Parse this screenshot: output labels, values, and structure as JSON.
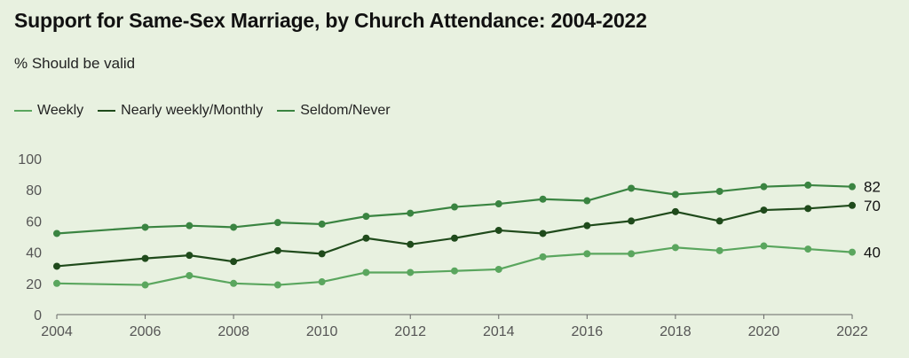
{
  "chart_data": {
    "type": "line",
    "title": "Support for Same-Sex Marriage, by Church Attendance: 2004-2022",
    "subtitle": "% Should be valid",
    "xlabel": "",
    "ylabel": "",
    "x": [
      2004,
      2006,
      2007,
      2008,
      2009,
      2010,
      2011,
      2012,
      2013,
      2014,
      2015,
      2016,
      2017,
      2018,
      2019,
      2020,
      2021,
      2022
    ],
    "x_ticks": [
      2004,
      2006,
      2008,
      2010,
      2012,
      2014,
      2016,
      2018,
      2020,
      2022
    ],
    "y_ticks": [
      0,
      20,
      40,
      60,
      80,
      100
    ],
    "xlim": [
      2004,
      2022
    ],
    "ylim": [
      0,
      100
    ],
    "grid": false,
    "legend_position": "top-left",
    "series": [
      {
        "name": "Weekly",
        "color": "#5aa65e",
        "values": [
          20,
          19,
          25,
          20,
          19,
          21,
          27,
          27,
          28,
          29,
          37,
          39,
          39,
          43,
          41,
          44,
          42,
          40
        ],
        "end_label": "40"
      },
      {
        "name": "Nearly weekly/Monthly",
        "color": "#1f4a1b",
        "values": [
          31,
          36,
          38,
          34,
          41,
          39,
          49,
          45,
          49,
          54,
          52,
          57,
          60,
          66,
          60,
          67,
          68,
          70
        ],
        "end_label": "70"
      },
      {
        "name": "Seldom/Never",
        "color": "#3a8441",
        "values": [
          52,
          56,
          57,
          56,
          59,
          58,
          63,
          65,
          69,
          71,
          74,
          73,
          81,
          77,
          79,
          82,
          83,
          82
        ],
        "end_label": "82"
      }
    ]
  }
}
